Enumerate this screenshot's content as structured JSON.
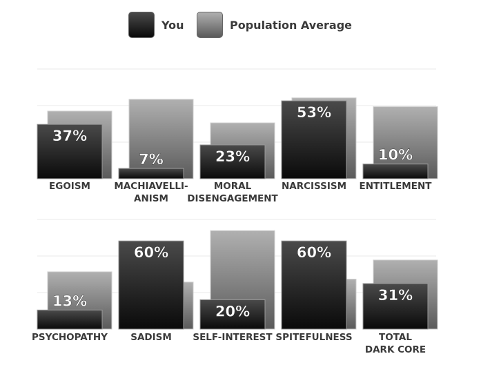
{
  "legend": {
    "you_label": "You",
    "pop_label": "Population Average"
  },
  "chart_data": [
    {
      "type": "bar",
      "categories": [
        "EGOISM",
        "MACHIAVELLI-ANISM",
        "MORAL DISENGAGEMENT",
        "NARCISSISM",
        "ENTITLEMENT"
      ],
      "category_lines": [
        [
          "EGOISM"
        ],
        [
          "MACHIAVELLI-",
          "ANISM"
        ],
        [
          "MORAL",
          "DISENGAGEMENT"
        ],
        [
          "NARCISSISM"
        ],
        [
          "ENTITLEMENT"
        ]
      ],
      "series": [
        {
          "name": "You",
          "values": [
            37,
            7,
            23,
            53,
            10
          ],
          "labels": [
            "37%",
            "7%",
            "23%",
            "53%",
            "10%"
          ]
        },
        {
          "name": "Population Average",
          "values": [
            46,
            54,
            38,
            55,
            49
          ]
        }
      ],
      "ylim": [
        0,
        100
      ],
      "grid": true
    },
    {
      "type": "bar",
      "categories": [
        "PSYCHOPATHY",
        "SADISM",
        "SELF-INTEREST",
        "SPITEFULNESS",
        "TOTAL DARK CORE"
      ],
      "category_lines": [
        [
          "PSYCHOPATHY"
        ],
        [
          "SADISM"
        ],
        [
          "SELF-INTEREST"
        ],
        [
          "SPITEFULNESS"
        ],
        [
          "TOTAL",
          "DARK CORE"
        ]
      ],
      "series": [
        {
          "name": "You",
          "values": [
            13,
            60,
            20,
            60,
            31
          ],
          "labels": [
            "13%",
            "60%",
            "20%",
            "60%",
            "31%"
          ]
        },
        {
          "name": "Population Average",
          "values": [
            39,
            32,
            67,
            34,
            47
          ]
        }
      ],
      "ylim": [
        0,
        100
      ],
      "grid": true
    }
  ],
  "colors": {
    "you_top": "#4a4a4a",
    "you_bottom": "#0a0a0a",
    "pop_top": "#b0b0b0",
    "pop_bottom": "#5a5a5a",
    "value_text": "#ffffff",
    "label_text": "#3a3a3a",
    "grid": "#e8e8e8"
  }
}
